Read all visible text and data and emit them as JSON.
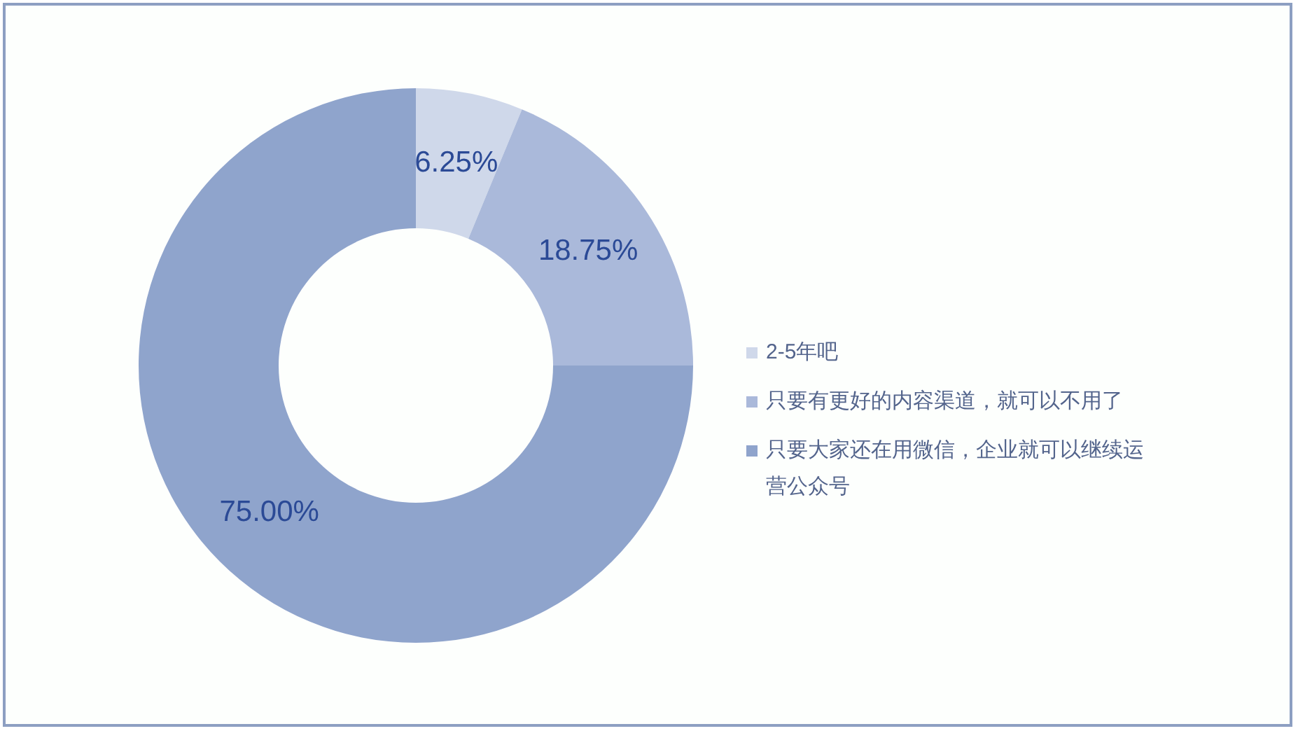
{
  "chart_data": {
    "type": "donut",
    "categories": [
      "2-5年吧",
      "只要有更好的内容渠道，就可以不用了",
      "只要大家还在用微信，企业就可以继续运营公众号"
    ],
    "values": [
      6.25,
      18.75,
      75
    ],
    "colors": [
      "#cfd8ea",
      "#aab9da",
      "#8fa4cc"
    ],
    "value_labels": [
      "6.25%",
      "18.75%",
      "75.00%"
    ],
    "legend": "right"
  }
}
